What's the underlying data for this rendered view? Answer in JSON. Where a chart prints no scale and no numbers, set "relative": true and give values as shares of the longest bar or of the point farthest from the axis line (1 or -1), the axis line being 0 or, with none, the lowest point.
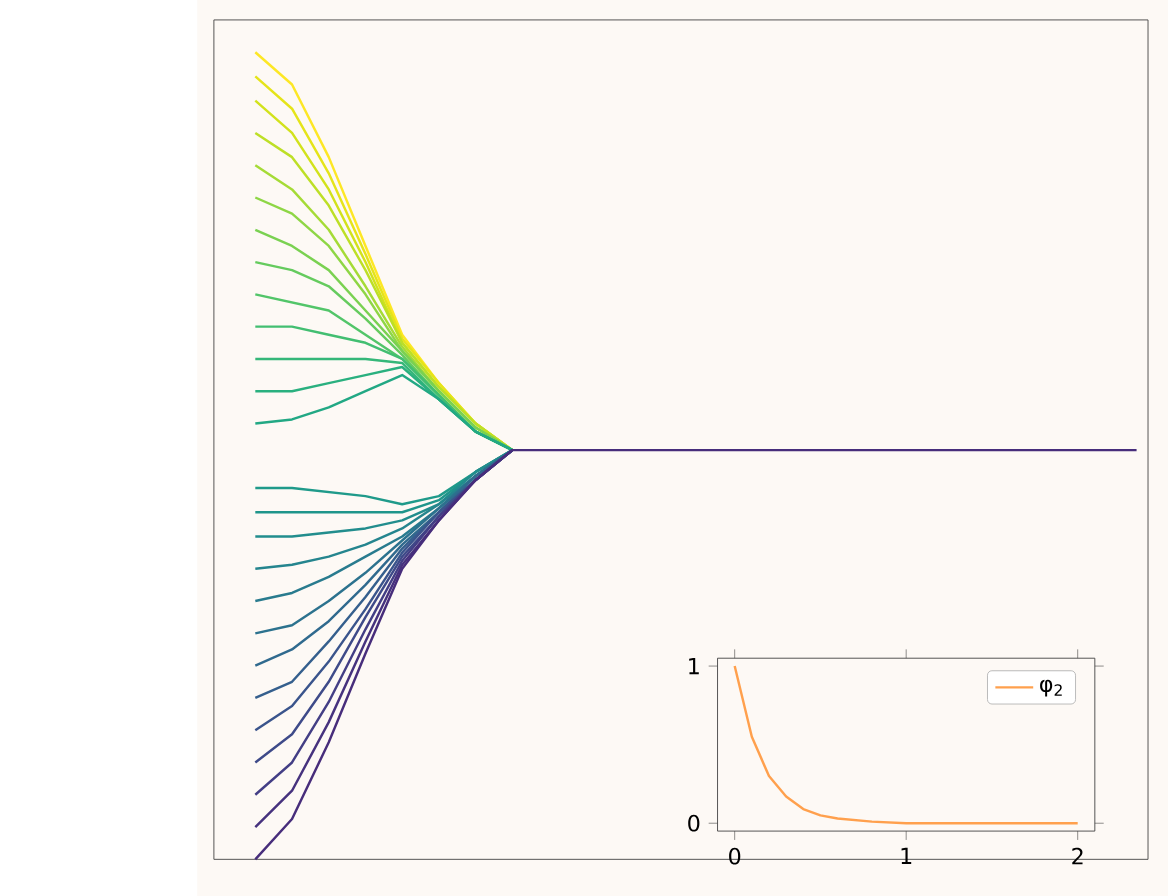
{
  "chart_data": [
    {
      "type": "line",
      "relative": true,
      "categories": [
        null,
        null,
        null,
        null,
        null,
        null,
        null,
        null,
        null,
        null,
        null,
        null,
        null,
        null,
        null,
        null,
        null,
        null,
        null,
        null,
        null,
        null,
        null,
        null,
        null
      ],
      "series": [
        {
          "color": "#fde725",
          "values": [
            1.0,
            0.96,
            0.87,
            0.76,
            0.65,
            0.59,
            0.54,
            0.507,
            null,
            null,
            null,
            null,
            null,
            null,
            null,
            null,
            null,
            null,
            null,
            null,
            null,
            null,
            null,
            null,
            null
          ]
        },
        {
          "color": "#e5e419",
          "values": [
            0.97,
            0.93,
            0.85,
            0.75,
            0.645,
            0.59,
            0.54,
            0.507,
            null,
            null,
            null,
            null,
            null,
            null,
            null,
            null,
            null,
            null,
            null,
            null,
            null,
            null,
            null,
            null,
            null
          ]
        },
        {
          "color": "#d2e21b",
          "values": [
            0.94,
            0.9,
            0.83,
            0.74,
            0.64,
            0.585,
            0.54,
            0.507,
            null,
            null,
            null,
            null,
            null,
            null,
            null,
            null,
            null,
            null,
            null,
            null,
            null,
            null,
            null,
            null,
            null
          ]
        },
        {
          "color": "#bddf26",
          "values": [
            0.9,
            0.87,
            0.81,
            0.73,
            0.64,
            0.585,
            0.54,
            0.507,
            null,
            null,
            null,
            null,
            null,
            null,
            null,
            null,
            null,
            null,
            null,
            null,
            null,
            null,
            null,
            null,
            null
          ]
        },
        {
          "color": "#a5db36",
          "values": [
            0.86,
            0.83,
            0.78,
            0.71,
            0.635,
            0.58,
            0.535,
            0.507,
            null,
            null,
            null,
            null,
            null,
            null,
            null,
            null,
            null,
            null,
            null,
            null,
            null,
            null,
            null,
            null,
            null
          ]
        },
        {
          "color": "#8ed645",
          "values": [
            0.82,
            0.8,
            0.76,
            0.7,
            0.63,
            0.58,
            0.535,
            0.507,
            null,
            null,
            null,
            null,
            null,
            null,
            null,
            null,
            null,
            null,
            null,
            null,
            null,
            null,
            null,
            null,
            null
          ]
        },
        {
          "color": "#7ad151",
          "values": [
            0.78,
            0.76,
            0.73,
            0.68,
            0.63,
            0.58,
            0.535,
            0.507,
            null,
            null,
            null,
            null,
            null,
            null,
            null,
            null,
            null,
            null,
            null,
            null,
            null,
            null,
            null,
            null,
            null
          ]
        },
        {
          "color": "#65cb5e",
          "values": [
            0.74,
            0.73,
            0.71,
            0.67,
            0.625,
            0.575,
            0.53,
            0.507,
            null,
            null,
            null,
            null,
            null,
            null,
            null,
            null,
            null,
            null,
            null,
            null,
            null,
            null,
            null,
            null,
            null
          ]
        },
        {
          "color": "#52c569",
          "values": [
            0.7,
            0.69,
            0.68,
            0.65,
            0.62,
            0.575,
            0.53,
            0.507,
            null,
            null,
            null,
            null,
            null,
            null,
            null,
            null,
            null,
            null,
            null,
            null,
            null,
            null,
            null,
            null,
            null
          ]
        },
        {
          "color": "#42be71",
          "values": [
            0.66,
            0.66,
            0.65,
            0.64,
            0.62,
            0.575,
            0.53,
            0.507,
            null,
            null,
            null,
            null,
            null,
            null,
            null,
            null,
            null,
            null,
            null,
            null,
            null,
            null,
            null,
            null,
            null
          ]
        },
        {
          "color": "#35b779",
          "values": [
            0.62,
            0.62,
            0.62,
            0.62,
            0.615,
            0.57,
            0.53,
            0.507,
            null,
            null,
            null,
            null,
            null,
            null,
            null,
            null,
            null,
            null,
            null,
            null,
            null,
            null,
            null,
            null,
            null
          ]
        },
        {
          "color": "#2ab07f",
          "values": [
            0.58,
            0.58,
            0.59,
            0.6,
            0.61,
            0.57,
            0.53,
            0.507,
            null,
            null,
            null,
            null,
            null,
            null,
            null,
            null,
            null,
            null,
            null,
            null,
            null,
            null,
            null,
            null,
            null
          ]
        },
        {
          "color": "#22a884",
          "values": [
            0.54,
            0.545,
            0.56,
            0.58,
            0.6,
            0.57,
            0.53,
            0.507,
            null,
            null,
            null,
            null,
            null,
            null,
            null,
            null,
            null,
            null,
            null,
            null,
            null,
            null,
            null,
            null,
            null
          ]
        },
        {
          "color": "#1f9a8a",
          "values": [
            0.46,
            0.46,
            0.455,
            0.45,
            0.44,
            0.45,
            0.48,
            0.507,
            null,
            null,
            null,
            null,
            null,
            null,
            null,
            null,
            null,
            null,
            null,
            null,
            null,
            null,
            null,
            null,
            null
          ]
        },
        {
          "color": "#1f958b",
          "values": [
            0.43,
            0.43,
            0.43,
            0.43,
            0.43,
            0.445,
            0.48,
            0.507,
            null,
            null,
            null,
            null,
            null,
            null,
            null,
            null,
            null,
            null,
            null,
            null,
            null,
            null,
            null,
            null,
            null
          ]
        },
        {
          "color": "#228d8d",
          "values": [
            0.4,
            0.4,
            0.405,
            0.41,
            0.42,
            0.44,
            0.48,
            0.507,
            null,
            null,
            null,
            null,
            null,
            null,
            null,
            null,
            null,
            null,
            null,
            null,
            null,
            null,
            null,
            null,
            null
          ]
        },
        {
          "color": "#25858e",
          "values": [
            0.36,
            0.365,
            0.375,
            0.39,
            0.41,
            0.44,
            0.475,
            0.507,
            null,
            null,
            null,
            null,
            null,
            null,
            null,
            null,
            null,
            null,
            null,
            null,
            null,
            null,
            null,
            null,
            null
          ]
        },
        {
          "color": "#297b8e",
          "values": [
            0.32,
            0.33,
            0.35,
            0.375,
            0.4,
            0.435,
            0.475,
            0.507,
            null,
            null,
            null,
            null,
            null,
            null,
            null,
            null,
            null,
            null,
            null,
            null,
            null,
            null,
            null,
            null,
            null
          ]
        },
        {
          "color": "#2c728e",
          "values": [
            0.28,
            0.29,
            0.32,
            0.355,
            0.395,
            0.435,
            0.475,
            0.507,
            null,
            null,
            null,
            null,
            null,
            null,
            null,
            null,
            null,
            null,
            null,
            null,
            null,
            null,
            null,
            null,
            null
          ]
        },
        {
          "color": "#306a8e",
          "values": [
            0.24,
            0.26,
            0.295,
            0.34,
            0.39,
            0.43,
            0.475,
            0.507,
            null,
            null,
            null,
            null,
            null,
            null,
            null,
            null,
            null,
            null,
            null,
            null,
            null,
            null,
            null,
            null,
            null
          ]
        },
        {
          "color": "#355f8d",
          "values": [
            0.2,
            0.22,
            0.27,
            0.325,
            0.385,
            0.43,
            0.47,
            0.507,
            null,
            null,
            null,
            null,
            null,
            null,
            null,
            null,
            null,
            null,
            null,
            null,
            null,
            null,
            null,
            null,
            null
          ]
        },
        {
          "color": "#3a548c",
          "values": [
            0.16,
            0.19,
            0.245,
            0.31,
            0.38,
            0.43,
            0.47,
            0.507,
            null,
            null,
            null,
            null,
            null,
            null,
            null,
            null,
            null,
            null,
            null,
            null,
            null,
            null,
            null,
            null,
            null
          ]
        },
        {
          "color": "#3e4a89",
          "values": [
            0.12,
            0.155,
            0.22,
            0.3,
            0.375,
            0.425,
            0.47,
            0.507,
            null,
            null,
            null,
            null,
            null,
            null,
            null,
            null,
            null,
            null,
            null,
            null,
            null,
            null,
            null,
            null,
            null
          ]
        },
        {
          "color": "#433e85",
          "values": [
            0.08,
            0.12,
            0.195,
            0.285,
            0.37,
            0.425,
            0.47,
            0.507,
            null,
            null,
            null,
            null,
            null,
            null,
            null,
            null,
            null,
            null,
            null,
            null,
            null,
            null,
            null,
            null,
            null
          ]
        },
        {
          "color": "#46327e",
          "values": [
            0.04,
            0.085,
            0.17,
            0.27,
            0.365,
            0.42,
            0.47,
            0.507,
            null,
            null,
            null,
            null,
            null,
            null,
            null,
            null,
            null,
            null,
            null,
            null,
            null,
            null,
            null,
            null,
            null
          ]
        },
        {
          "color": "#472d7b",
          "values": [
            0.0,
            0.05,
            0.145,
            0.255,
            0.36,
            0.42,
            0.47,
            0.507,
            0.507,
            0.507,
            0.507,
            0.507,
            0.507,
            0.507,
            0.507,
            0.507,
            0.507,
            0.507,
            0.507,
            0.507,
            0.507,
            0.507,
            0.507,
            0.507,
            0.507
          ]
        }
      ]
    },
    {
      "type": "line",
      "legend": "top right",
      "x": [
        0,
        0.1,
        0.2,
        0.3,
        0.4,
        0.5,
        0.6,
        0.8,
        1.0,
        1.5,
        2.0
      ],
      "xlim": [
        -0.1,
        2.1
      ],
      "ylim": [
        -0.05,
        1.05
      ],
      "xticks": [
        0,
        1,
        2
      ],
      "yticks": [
        0,
        1
      ],
      "series": [
        {
          "name": "φ$_{2}$",
          "color": "#ffa04d",
          "values": [
            1.0,
            0.55,
            0.3,
            0.17,
            0.09,
            0.05,
            0.03,
            0.01,
            0.0,
            0.0,
            0.0
          ]
        }
      ]
    }
  ]
}
